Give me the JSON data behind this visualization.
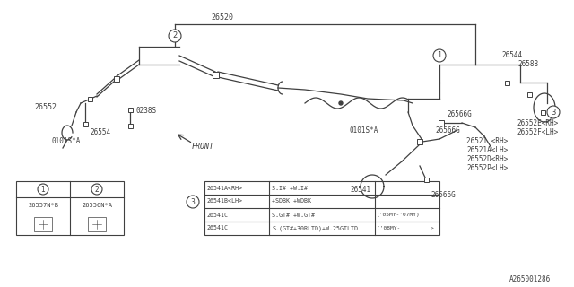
{
  "bg_color": "#ffffff",
  "line_color": "#404040",
  "part_number_26520": "26520",
  "part_number_26552": "26552",
  "part_number_26554": "26554",
  "part_number_0238S": "0238S",
  "part_number_0101SA_left": "0101S*A",
  "part_number_0101SA_right": "0101S*A",
  "part_number_26544": "26544",
  "part_number_26580": "26588",
  "part_number_26566G_1": "26566G",
  "part_number_26566G_2": "26566G",
  "part_number_26566G_3": "26566G",
  "part_number_26521": "26521 <RH>",
  "part_number_26521A": "26521A<LH>",
  "part_number_26552D": "26552D<RH>",
  "part_number_26552P": "26552P<LH>",
  "part_number_26552E": "26552E<RH>",
  "part_number_26552F": "26552F<LH>",
  "part_number_26541": "26541",
  "part_number_26557NB": "26557N*B",
  "part_number_26556NA": "26556N*A",
  "footnote_code": "A265001286",
  "table1_rows": [
    [
      "26541A<RH>",
      "S.I# +W.I#",
      ""
    ],
    [
      "26541B<LH>",
      "+SDBK +WDBK",
      ""
    ],
    [
      "26541C",
      "S.GT# +W.GT#",
      "('05MY-'07MY)"
    ],
    [
      "26541C",
      "S.(GT#+30RLTD)+W.25GTLTD",
      "('08MY-         >"
    ]
  ],
  "front_label": "FRONT"
}
